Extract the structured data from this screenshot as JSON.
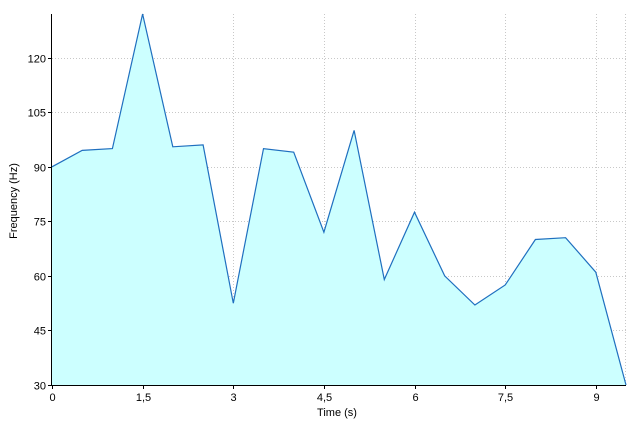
{
  "chart_data": {
    "type": "area",
    "xlabel": "Time (s)",
    "ylabel": "Frequency (Hz)",
    "xlim": [
      0,
      9.5
    ],
    "ylim": [
      30,
      132
    ],
    "x_ticks": [
      0,
      1.5,
      3,
      4.5,
      6,
      7.5,
      9
    ],
    "x_tick_labels": [
      "0",
      "1,5",
      "3",
      "4,5",
      "6",
      "7,5",
      "9"
    ],
    "y_ticks": [
      30,
      45,
      60,
      75,
      90,
      105,
      120
    ],
    "y_tick_labels": [
      "30",
      "45",
      "60",
      "75",
      "90",
      "105",
      "120"
    ],
    "grid": true,
    "legend": "none",
    "x": [
      0,
      0.5,
      1,
      1.5,
      2,
      2.5,
      3,
      3.5,
      4,
      4.5,
      5,
      5.5,
      6,
      6.5,
      7,
      7.5,
      8,
      8.5,
      9,
      9.5
    ],
    "values": [
      90,
      94.5,
      95,
      132,
      95.5,
      96,
      52.5,
      95,
      94,
      72,
      100,
      59,
      77.5,
      60,
      52,
      57.5,
      70,
      70.5,
      61,
      30
    ],
    "colors": {
      "fill": "#ccffff",
      "line": "#1f6fbf",
      "grid": "#c8c8c8",
      "axis": "#000000"
    }
  }
}
